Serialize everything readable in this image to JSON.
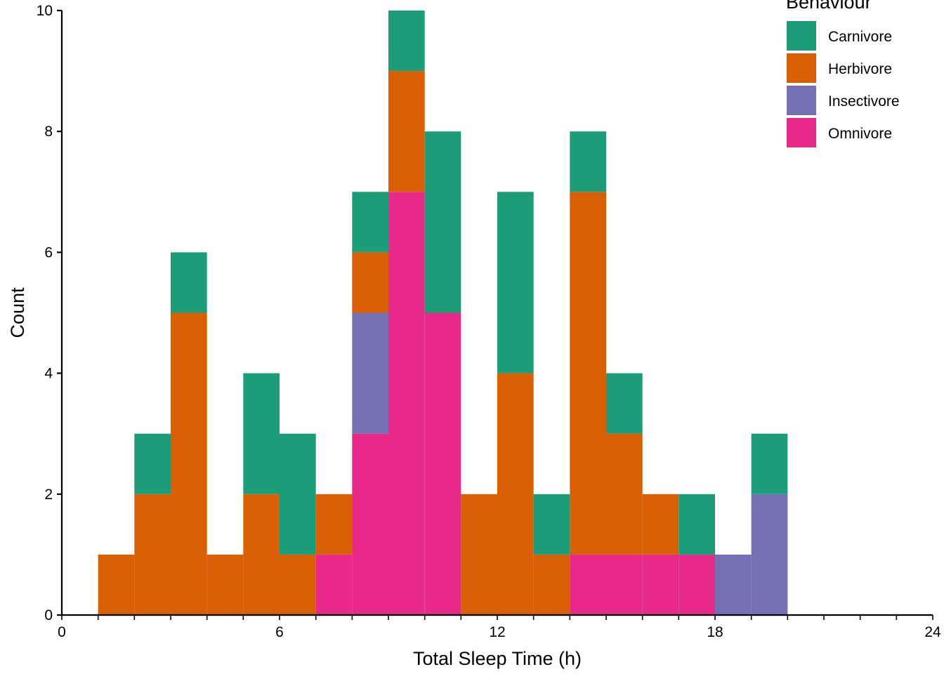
{
  "chart_data": {
    "type": "bar",
    "stacked": true,
    "subtype": "histogram",
    "title": "",
    "xlabel": "Total Sleep Time (h)",
    "ylabel": "Count",
    "xlim": [
      0,
      24
    ],
    "ylim": [
      0,
      10
    ],
    "x_ticks": [
      0,
      6,
      12,
      18,
      24
    ],
    "y_ticks": [
      0,
      2,
      4,
      6,
      8,
      10
    ],
    "bin_width": 1,
    "bin_starts": [
      1,
      2,
      3,
      4,
      5,
      6,
      7,
      8,
      9,
      10,
      11,
      12,
      13,
      14,
      15,
      16,
      17,
      18,
      19
    ],
    "legend_title": "Behaviour",
    "series": [
      {
        "name": "Omnivore",
        "color": "#E7298A",
        "values": [
          0,
          0,
          0,
          0,
          0,
          0,
          1,
          3,
          7,
          5,
          0,
          0,
          0,
          1,
          1,
          1,
          1,
          0,
          0
        ]
      },
      {
        "name": "Insectivore",
        "color": "#7570B3",
        "values": [
          0,
          0,
          0,
          0,
          0,
          0,
          0,
          2,
          0,
          0,
          0,
          0,
          0,
          0,
          0,
          0,
          0,
          1,
          2
        ]
      },
      {
        "name": "Herbivore",
        "color": "#D95F02",
        "values": [
          1,
          2,
          5,
          1,
          2,
          1,
          1,
          1,
          2,
          0,
          2,
          4,
          1,
          6,
          2,
          1,
          0,
          0,
          0
        ]
      },
      {
        "name": "Carnivore",
        "color": "#1B9E77",
        "values": [
          0,
          1,
          1,
          0,
          2,
          2,
          0,
          1,
          1,
          3,
          0,
          3,
          1,
          1,
          1,
          0,
          1,
          0,
          1
        ]
      }
    ],
    "legend_order": [
      "Carnivore",
      "Herbivore",
      "Insectivore",
      "Omnivore"
    ]
  }
}
